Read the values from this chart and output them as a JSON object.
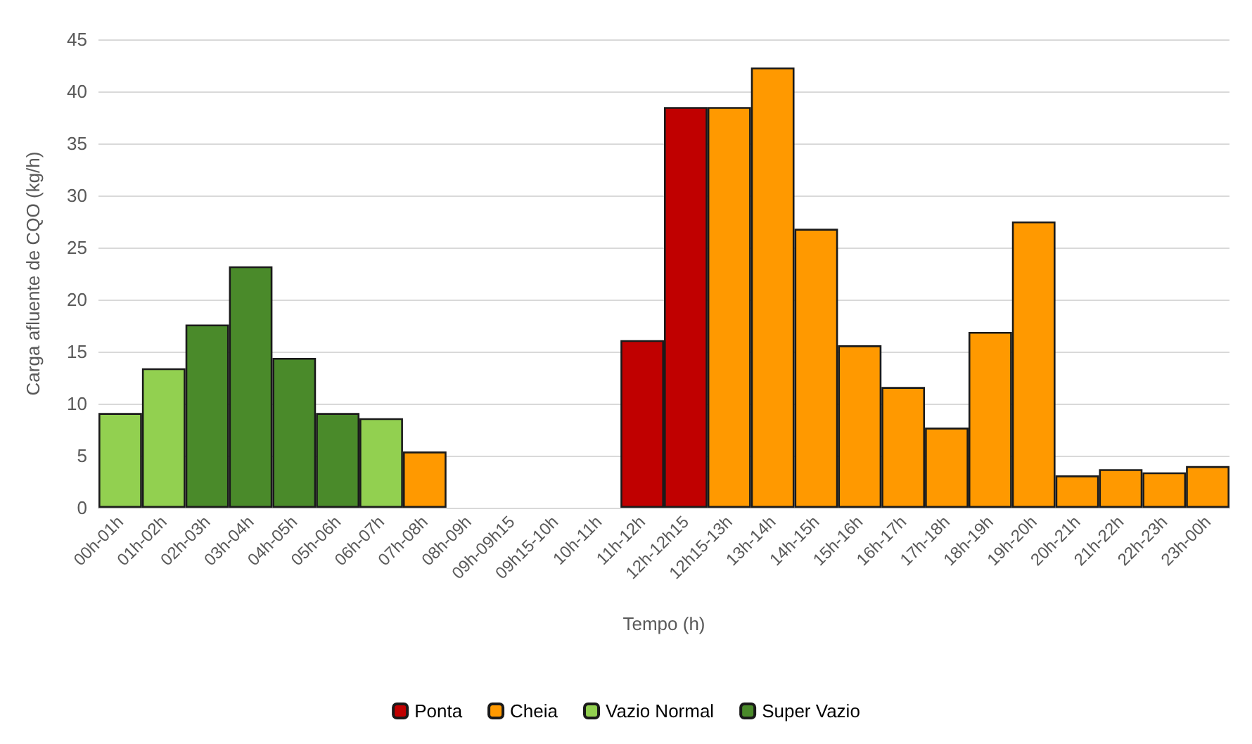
{
  "chart_data": {
    "type": "bar",
    "stacked": true,
    "xlabel": "Tempo (h)",
    "ylabel": "Carga afluente de CQO (kg/h)",
    "categories": [
      "00h-01h",
      "01h-02h",
      "02h-03h",
      "03h-04h",
      "04h-05h",
      "05h-06h",
      "06h-07h",
      "07h-08h",
      "08h-09h",
      "09h-09h15",
      "09h15-10h",
      "10h-11h",
      "11h-12h",
      "12h-12h15",
      "12h15-13h",
      "13h-14h",
      "14h-15h",
      "15h-16h",
      "16h-17h",
      "17h-18h",
      "18h-19h",
      "19h-20h",
      "20h-21h",
      "21h-22h",
      "22h-23h",
      "23h-00h"
    ],
    "series": [
      {
        "name": "Ponta",
        "color": "#c00000",
        "values": [
          null,
          null,
          null,
          null,
          null,
          null,
          null,
          null,
          null,
          null,
          null,
          null,
          16.1,
          38.5,
          null,
          null,
          null,
          null,
          null,
          null,
          null,
          null,
          null,
          null,
          null,
          null
        ]
      },
      {
        "name": "Cheia",
        "color": "#ff9900",
        "values": [
          null,
          null,
          null,
          null,
          null,
          null,
          null,
          5.4,
          null,
          null,
          null,
          null,
          null,
          null,
          38.5,
          42.3,
          26.8,
          15.6,
          11.6,
          7.7,
          16.9,
          27.5,
          3.1,
          3.7,
          3.4,
          4.0
        ]
      },
      {
        "name": "Vazio Normal",
        "color": "#92d050",
        "values": [
          9.1,
          13.4,
          null,
          null,
          null,
          null,
          8.6,
          null,
          null,
          null,
          null,
          null,
          null,
          null,
          null,
          null,
          null,
          null,
          null,
          null,
          null,
          null,
          null,
          null,
          null,
          null
        ]
      },
      {
        "name": "Super Vazio",
        "color": "#4a8a2a",
        "values": [
          null,
          null,
          17.6,
          23.2,
          14.4,
          9.1,
          null,
          null,
          null,
          null,
          null,
          null,
          null,
          null,
          null,
          null,
          null,
          null,
          null,
          null,
          null,
          null,
          null,
          null,
          null,
          null
        ]
      }
    ],
    "ylim": [
      0,
      45
    ],
    "yticks": [
      0,
      5,
      10,
      15,
      20,
      25,
      30,
      35,
      40,
      45
    ],
    "grid": "y",
    "legend": "bottom"
  }
}
